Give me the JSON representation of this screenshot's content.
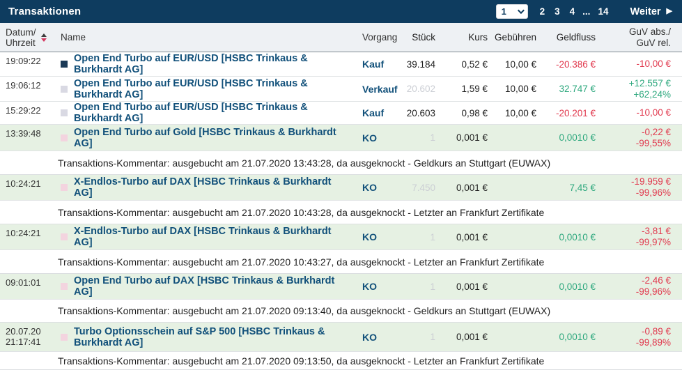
{
  "colors": {
    "header_bg": "#0e3c5f",
    "accent": "#11507a",
    "negative": "#e1394e",
    "positive": "#2ea87e",
    "row_green": "#e6f1e3",
    "muted": "#cbced4",
    "sq_dark": "#1b3a57",
    "sq_gray": "#d9d9e3",
    "sq_pink": "#f3d4df"
  },
  "header": {
    "title": "Transaktionen",
    "pagination": {
      "current": "1",
      "pages": [
        "2",
        "3",
        "4",
        "...",
        "14"
      ],
      "next_label": "Weiter",
      "next_arrow": "▶"
    }
  },
  "columns": {
    "datum_line1": "Datum/",
    "datum_line2": "Uhrzeit",
    "name": "Name",
    "vorgang": "Vorgang",
    "stueck": "Stück",
    "kurs": "Kurs",
    "gebuehren": "Gebühren",
    "geldfluss": "Geldfluss",
    "guv_line1": "GuV abs./",
    "guv_line2": "GuV rel."
  },
  "rows": [
    {
      "time": "19:09:22",
      "name": "Open End Turbo auf EUR/USD [HSBC Trinkaus & Burkhardt AG]",
      "vorgang": "Kauf",
      "stueck": "39.184",
      "kurs": "0,52 €",
      "gebuehren": "10,00 €",
      "geldfluss": "-20.386 €",
      "guv_abs": "-10,00 €",
      "guv_rel": ""
    },
    {
      "time": "19:06:12",
      "name": "Open End Turbo auf EUR/USD [HSBC Trinkaus & Burkhardt AG]",
      "vorgang": "Verkauf",
      "stueck": "20.602",
      "kurs": "1,59 €",
      "gebuehren": "10,00 €",
      "geldfluss": "32.747 €",
      "guv_abs": "+12.557 €",
      "guv_rel": "+62,24%"
    },
    {
      "time": "15:29:22",
      "name": "Open End Turbo auf EUR/USD [HSBC Trinkaus & Burkhardt AG]",
      "vorgang": "Kauf",
      "stueck": "20.603",
      "kurs": "0,98 €",
      "gebuehren": "10,00 €",
      "geldfluss": "-20.201 €",
      "guv_abs": "-10,00 €",
      "guv_rel": ""
    },
    {
      "time": "13:39:48",
      "name": "Open End Turbo auf Gold [HSBC Trinkaus & Burkhardt AG]",
      "vorgang": "KO",
      "stueck": "1",
      "kurs": "0,001 €",
      "gebuehren": "",
      "geldfluss": "0,0010 €",
      "guv_abs": "-0,22 €",
      "guv_rel": "-99,55%"
    },
    {
      "time": "10:24:21",
      "name": "X-Endlos-Turbo auf DAX [HSBC Trinkaus & Burkhardt AG]",
      "vorgang": "KO",
      "stueck": "7.450",
      "kurs": "0,001 €",
      "gebuehren": "",
      "geldfluss": "7,45 €",
      "guv_abs": "-19.959 €",
      "guv_rel": "-99,96%"
    },
    {
      "time": "10:24:21",
      "name": "X-Endlos-Turbo auf DAX [HSBC Trinkaus & Burkhardt AG]",
      "vorgang": "KO",
      "stueck": "1",
      "kurs": "0,001 €",
      "gebuehren": "",
      "geldfluss": "0,0010 €",
      "guv_abs": "-3,81 €",
      "guv_rel": "-99,97%"
    },
    {
      "time": "09:01:01",
      "name": "Open End Turbo auf DAX [HSBC Trinkaus & Burkhardt AG]",
      "vorgang": "KO",
      "stueck": "1",
      "kurs": "0,001 €",
      "gebuehren": "",
      "geldfluss": "0,0010 €",
      "guv_abs": "-2,46 €",
      "guv_rel": "-99,96%"
    },
    {
      "date": "20.07.20",
      "time": "21:17:41",
      "name": "Turbo Optionsschein auf S&P 500 [HSBC Trinkaus & Burkhardt AG]",
      "vorgang": "KO",
      "stueck": "1",
      "kurs": "0,001 €",
      "gebuehren": "",
      "geldfluss": "0,0010 €",
      "guv_abs": "-0,89 €",
      "guv_rel": "-99,89%"
    }
  ],
  "comments": [
    {
      "text": "Transaktions-Kommentar: ausgebucht am 21.07.2020 13:43:28, da ausgeknockt - Geldkurs an Stuttgart (EUWAX)"
    },
    {
      "text": "Transaktions-Kommentar: ausgebucht am 21.07.2020 10:43:28, da ausgeknockt - Letzter an Frankfurt Zertifikate"
    },
    {
      "text": "Transaktions-Kommentar: ausgebucht am 21.07.2020 10:43:27, da ausgeknockt - Letzter an Frankfurt Zertifikate"
    },
    {
      "text": "Transaktions-Kommentar: ausgebucht am 21.07.2020 09:13:40, da ausgeknockt - Geldkurs an Stuttgart (EUWAX)"
    },
    {
      "text": "Transaktions-Kommentar: ausgebucht am 21.07.2020 09:13:50, da ausgeknockt - Letzter an Frankfurt Zertifikate"
    }
  ]
}
